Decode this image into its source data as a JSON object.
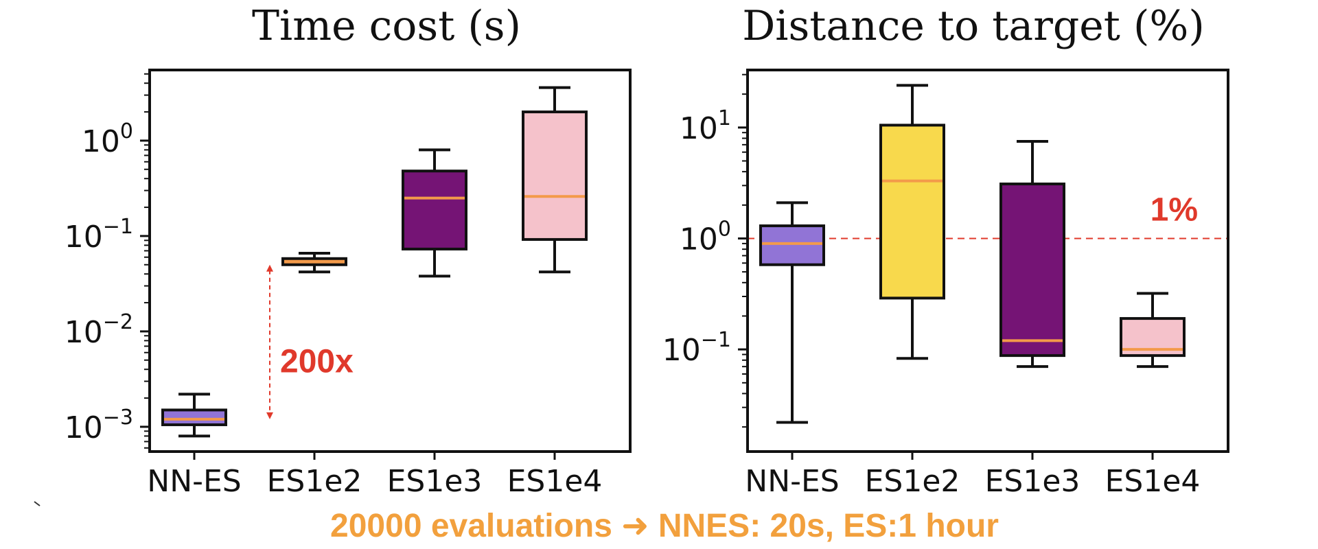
{
  "chart_data": [
    {
      "type": "box",
      "title": "Time cost (s)",
      "xlabel": "",
      "ylabel": "",
      "y_scale": "log",
      "ylim": [
        0.00055,
        5.5
      ],
      "y_ticks": [
        {
          "value": 0.001,
          "base": "10",
          "exp": "−3"
        },
        {
          "value": 0.01,
          "base": "10",
          "exp": "−2"
        },
        {
          "value": 0.1,
          "base": "10",
          "exp": "−1"
        },
        {
          "value": 1,
          "base": "10",
          "exp": "0"
        }
      ],
      "grid": false,
      "categories": [
        "NN-ES",
        "ES1e2",
        "ES1e3",
        "ES1e4"
      ],
      "boxes": [
        {
          "category": "NN-ES",
          "whisker_low": 0.0008,
          "q1": 0.00105,
          "median": 0.0012,
          "q3": 0.0015,
          "whisker_high": 0.0022,
          "color": "#9174d6"
        },
        {
          "category": "ES1e2",
          "whisker_low": 0.042,
          "q1": 0.05,
          "median": 0.054,
          "q3": 0.058,
          "whisker_high": 0.066,
          "color": "#f39a4a"
        },
        {
          "category": "ES1e3",
          "whisker_low": 0.038,
          "q1": 0.073,
          "median": 0.25,
          "q3": 0.48,
          "whisker_high": 0.8,
          "color": "#751475"
        },
        {
          "category": "ES1e4",
          "whisker_low": 0.042,
          "q1": 0.092,
          "median": 0.26,
          "q3": 2.0,
          "whisker_high": 3.6,
          "color": "#f5c2cb"
        }
      ],
      "annotations": [
        {
          "type": "double-arrow",
          "from": 0.0012,
          "to": 0.05,
          "color": "#e0392b"
        },
        {
          "type": "text",
          "text": "200x",
          "color": "#e0392b"
        }
      ]
    },
    {
      "type": "box",
      "title": "Distance to target (%)",
      "xlabel": "",
      "ylabel": "",
      "y_scale": "log",
      "ylim": [
        0.012,
        33
      ],
      "y_ticks": [
        {
          "value": 0.1,
          "base": "10",
          "exp": "−1"
        },
        {
          "value": 1,
          "base": "10",
          "exp": "0"
        },
        {
          "value": 10,
          "base": "10",
          "exp": "1"
        }
      ],
      "grid": false,
      "categories": [
        "NN-ES",
        "ES1e2",
        "ES1e3",
        "ES1e4"
      ],
      "boxes": [
        {
          "category": "NN-ES",
          "whisker_low": 0.022,
          "q1": 0.58,
          "median": 0.9,
          "q3": 1.3,
          "whisker_high": 2.1,
          "color": "#9174d6"
        },
        {
          "category": "ES1e2",
          "whisker_low": 0.083,
          "q1": 0.29,
          "median": 3.3,
          "q3": 10.5,
          "whisker_high": 24,
          "color": "#f8d94c"
        },
        {
          "category": "ES1e3",
          "whisker_low": 0.07,
          "q1": 0.088,
          "median": 0.12,
          "q3": 3.1,
          "whisker_high": 7.5,
          "color": "#751475"
        },
        {
          "category": "ES1e4",
          "whisker_low": 0.07,
          "q1": 0.088,
          "median": 0.1,
          "q3": 0.19,
          "whisker_high": 0.32,
          "color": "#f5c2cb"
        }
      ],
      "reference_line": {
        "value": 1,
        "style": "dashed",
        "color": "#e0392b",
        "label": "1%"
      }
    }
  ],
  "styles": {
    "median_color": "#f39a4a",
    "annotation_color": "#e0392b",
    "footer_color": "#f2a03d",
    "axis_color": "#111111"
  },
  "footer": {
    "text": "20000 evaluations ➜ NNES: 20s,  ES:1 hour"
  }
}
